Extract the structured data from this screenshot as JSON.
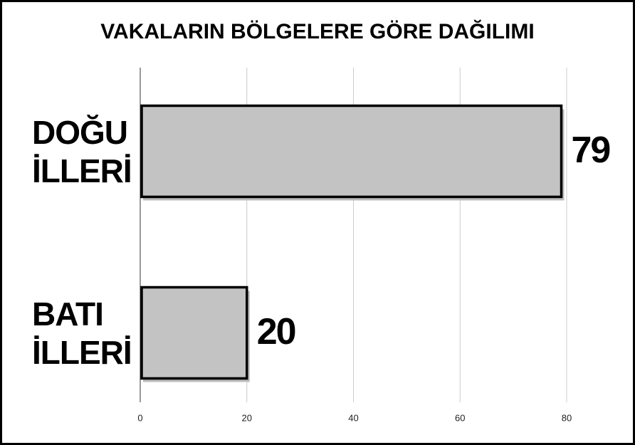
{
  "chart_data": {
    "type": "hbar",
    "title": "VAKALARIN BÖLGELERE GÖRE DAĞILIMI",
    "categories": [
      "DOĞU İLLERİ",
      "BATI İLLERİ"
    ],
    "values": [
      79,
      20
    ],
    "color": "#c3c3c3",
    "xlim": [
      0,
      80
    ],
    "xticks": [
      0,
      20,
      40,
      60,
      80
    ],
    "grid": true
  }
}
